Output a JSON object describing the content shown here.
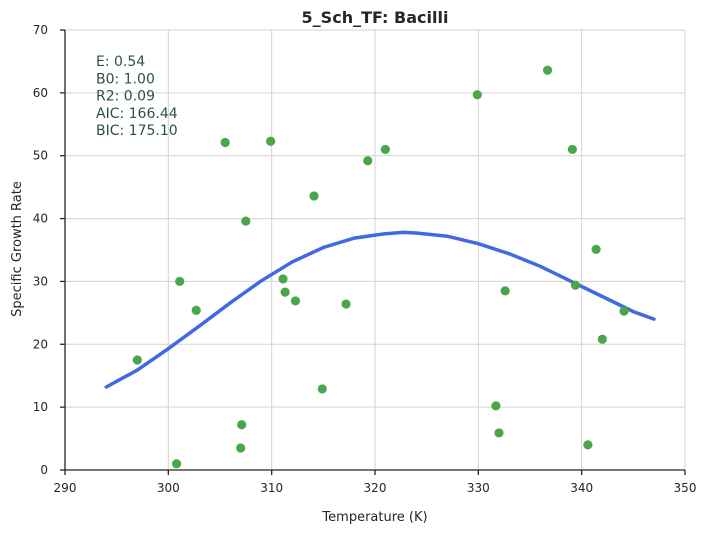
{
  "chart_data": {
    "type": "scatter",
    "title": "5_Sch_TF: Bacilli",
    "xlabel": "Temperature (K)",
    "ylabel": "Specific Growth Rate",
    "xlim": [
      290,
      350
    ],
    "ylim": [
      0,
      70
    ],
    "x_ticks": [
      290,
      300,
      310,
      320,
      330,
      340,
      350
    ],
    "y_ticks": [
      0,
      10,
      20,
      30,
      40,
      50,
      60,
      70
    ],
    "x_tick_labels": [
      "290",
      "300",
      "310",
      "320",
      "330",
      "340",
      "350"
    ],
    "y_tick_labels": [
      "0",
      "10",
      "20",
      "30",
      "40",
      "50",
      "60",
      "70"
    ],
    "grid": true,
    "colors": {
      "points": "#4aa64a",
      "fit": "#4169e1",
      "stats_text": "#2f4f4f"
    },
    "stats_lines": [
      "E:  0.54",
      "B0:  1.00",
      "R2:  0.09",
      "AIC: 166.44",
      "BIC: 175.10"
    ],
    "points": [
      {
        "x": 297.0,
        "y": 17.5
      },
      {
        "x": 300.8,
        "y": 1.0
      },
      {
        "x": 301.1,
        "y": 30.0
      },
      {
        "x": 302.7,
        "y": 25.4
      },
      {
        "x": 305.5,
        "y": 52.1
      },
      {
        "x": 307.0,
        "y": 3.5
      },
      {
        "x": 307.1,
        "y": 7.2
      },
      {
        "x": 307.5,
        "y": 39.6
      },
      {
        "x": 309.9,
        "y": 52.3
      },
      {
        "x": 311.1,
        "y": 30.4
      },
      {
        "x": 311.3,
        "y": 28.3
      },
      {
        "x": 312.3,
        "y": 26.9
      },
      {
        "x": 314.1,
        "y": 43.6
      },
      {
        "x": 314.9,
        "y": 12.9
      },
      {
        "x": 317.2,
        "y": 26.4
      },
      {
        "x": 319.3,
        "y": 49.2
      },
      {
        "x": 321.0,
        "y": 51.0
      },
      {
        "x": 329.9,
        "y": 59.7
      },
      {
        "x": 331.7,
        "y": 10.2
      },
      {
        "x": 332.0,
        "y": 5.9
      },
      {
        "x": 332.6,
        "y": 28.5
      },
      {
        "x": 336.7,
        "y": 63.6
      },
      {
        "x": 339.1,
        "y": 51.0
      },
      {
        "x": 339.4,
        "y": 29.4
      },
      {
        "x": 340.6,
        "y": 4.0
      },
      {
        "x": 341.4,
        "y": 35.1
      },
      {
        "x": 342.0,
        "y": 20.8
      },
      {
        "x": 344.1,
        "y": 25.3
      }
    ],
    "fit_curve": {
      "x": [
        294,
        297,
        300,
        303,
        306,
        309,
        312,
        315,
        318,
        321,
        322.7,
        324,
        327,
        330,
        333,
        336,
        339,
        342,
        345,
        347
      ],
      "y": [
        13.2,
        15.9,
        19.3,
        22.9,
        26.6,
        30.1,
        33.1,
        35.4,
        36.9,
        37.6,
        37.8,
        37.7,
        37.2,
        36.0,
        34.4,
        32.4,
        30.0,
        27.6,
        25.2,
        24.0
      ]
    }
  }
}
